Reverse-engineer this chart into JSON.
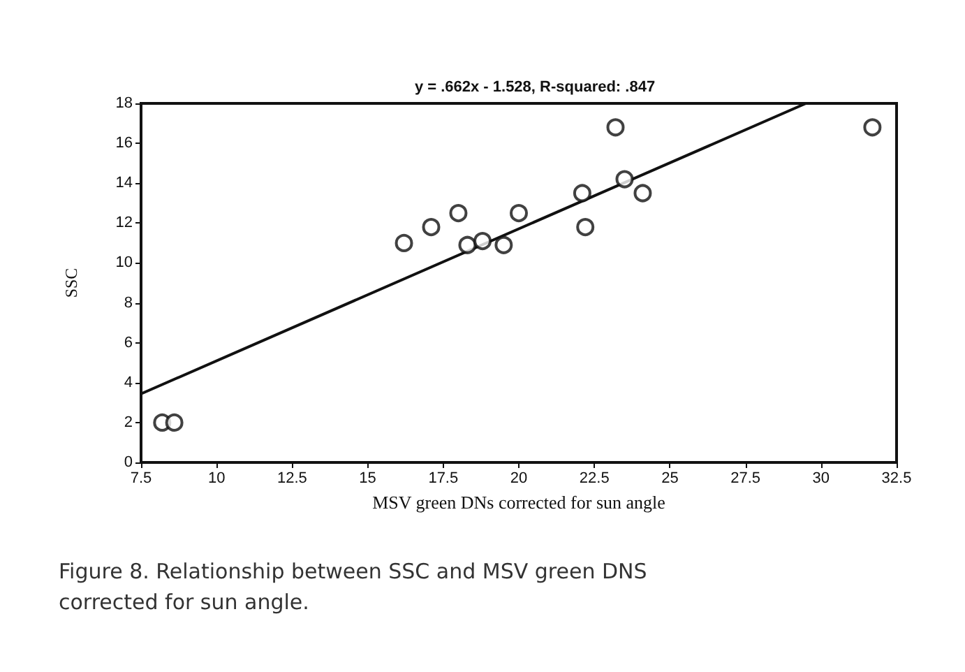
{
  "chart_data": {
    "type": "scatter",
    "title": "y = .662x - 1.528, R-squared: .847",
    "xlabel": "MSV green DNs corrected for sun angle",
    "ylabel": "SSC",
    "annotations": [
      "Figure 8. Relationship between SSC and MSV green DNS corrected for sun angle."
    ],
    "xlim": [
      7.5,
      32.5
    ],
    "xticks": [
      7.5,
      10,
      12.5,
      15,
      17.5,
      20,
      22.5,
      25,
      27.5,
      30,
      32.5
    ],
    "ylim": [
      0,
      18
    ],
    "yticks": [
      0,
      2,
      4,
      6,
      8,
      10,
      12,
      14,
      16,
      18
    ],
    "grid": false,
    "marker": "circle",
    "series": [
      {
        "color": "#111111",
        "x": [
          8.2,
          8.6,
          16.2,
          17.1,
          18,
          18.3,
          18.8,
          19.5,
          20,
          22.1,
          22.2,
          23.2,
          23.5,
          24.1,
          31.7
        ],
        "values": [
          2,
          2,
          11,
          11.8,
          12.5,
          10.9,
          11.1,
          10.9,
          12.5,
          13.5,
          11.8,
          16.8,
          14.2,
          13.5,
          16.8
        ]
      },
      {
        "type": "line",
        "color": "#111111",
        "marker": "none",
        "line_style": "solid",
        "x": [
          7.5,
          29.5
        ],
        "values": [
          3.44,
          18
        ]
      }
    ]
  }
}
